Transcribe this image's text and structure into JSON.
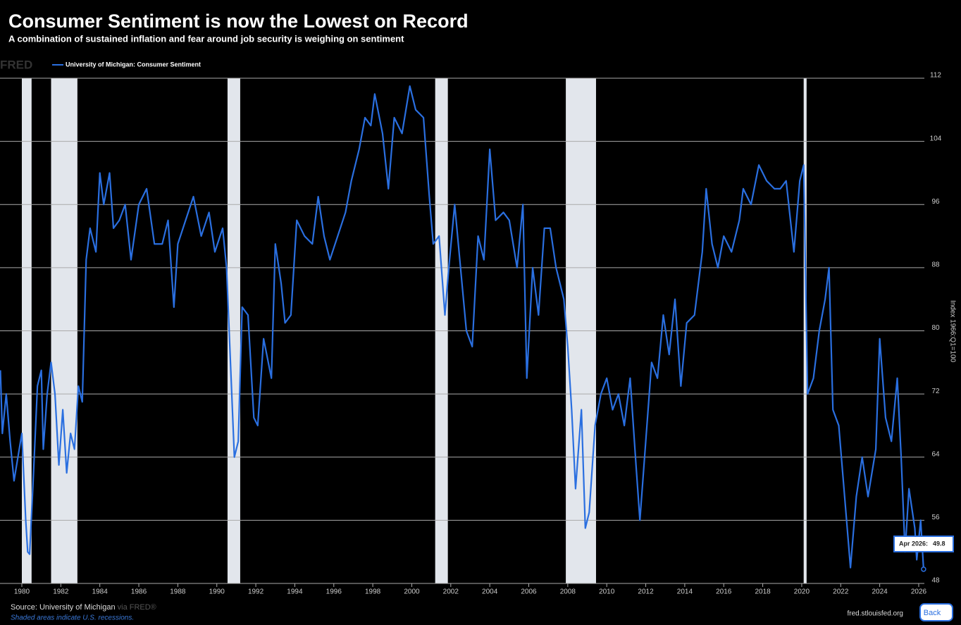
{
  "chart_data": {
    "type": "line",
    "title": "Consumer Sentiment is now the Lowest on Record",
    "subtitle": "A combination of sustained inflation and fear around job security is weighing on sentiment",
    "logo": "FRED",
    "y_label": "Index 1966:Q1=100",
    "source": "Source: University of Michigan",
    "via": "via FRED®",
    "recession_note": "Shaded areas indicate U.S. recessions.",
    "site": "fred.stlouisfed.org",
    "button": "Back",
    "tooltip_date": "Apr 2026:",
    "grid": true,
    "xlim": [
      1978.88,
      2026.29
    ],
    "ylim": [
      48,
      112
    ],
    "xticks": [
      1980,
      1982,
      1984,
      1986,
      1988,
      1990,
      1992,
      1994,
      1996,
      1998,
      2000,
      2002,
      2004,
      2006,
      2008,
      2010,
      2012,
      2014,
      2016,
      2018,
      2020,
      2022,
      2024,
      2026
    ],
    "yticks": [
      48,
      56,
      64,
      72,
      80,
      88,
      96,
      104,
      112
    ],
    "recessions": [
      [
        1980.0,
        1980.5
      ],
      [
        1981.5,
        1982.85
      ],
      [
        1990.55,
        1991.2
      ],
      [
        2001.2,
        2001.85
      ],
      [
        2007.9,
        2009.45
      ],
      [
        2020.1,
        2020.25
      ]
    ],
    "x": [
      1978.9,
      1979.0,
      1979.2,
      1979.4,
      1979.6,
      1979.8,
      1980.0,
      1980.2,
      1980.3,
      1980.4,
      1980.6,
      1980.8,
      1981.0,
      1981.1,
      1981.3,
      1981.5,
      1981.7,
      1981.9,
      1982.1,
      1982.3,
      1982.5,
      1982.7,
      1982.9,
      1983.1,
      1983.3,
      1983.5,
      1983.8,
      1984.0,
      1984.2,
      1984.5,
      1984.7,
      1985.0,
      1985.3,
      1985.6,
      1986.0,
      1986.4,
      1986.8,
      1987.2,
      1987.5,
      1987.8,
      1988.0,
      1988.4,
      1988.8,
      1989.2,
      1989.6,
      1989.9,
      1990.3,
      1990.5,
      1990.7,
      1990.9,
      1991.1,
      1991.3,
      1991.6,
      1991.9,
      1992.1,
      1992.4,
      1992.8,
      1993.0,
      1993.3,
      1993.5,
      1993.8,
      1994.1,
      1994.5,
      1994.9,
      1995.2,
      1995.5,
      1995.8,
      1996.2,
      1996.6,
      1996.9,
      1997.3,
      1997.6,
      1997.9,
      1998.1,
      1998.5,
      1998.8,
      1999.1,
      1999.5,
      1999.9,
      2000.2,
      2000.6,
      2000.9,
      2001.1,
      2001.4,
      2001.7,
      2001.9,
      2002.2,
      2002.5,
      2002.8,
      2003.1,
      2003.4,
      2003.7,
      2004.0,
      2004.3,
      2004.7,
      2005.0,
      2005.4,
      2005.7,
      2005.9,
      2006.2,
      2006.5,
      2006.8,
      2007.1,
      2007.4,
      2007.8,
      2008.0,
      2008.2,
      2008.4,
      2008.7,
      2008.9,
      2009.1,
      2009.4,
      2009.7,
      2010.0,
      2010.3,
      2010.6,
      2010.9,
      2011.2,
      2011.5,
      2011.7,
      2012.0,
      2012.3,
      2012.6,
      2012.9,
      2013.2,
      2013.5,
      2013.8,
      2014.1,
      2014.5,
      2014.9,
      2015.1,
      2015.4,
      2015.7,
      2016.0,
      2016.4,
      2016.8,
      2017.0,
      2017.4,
      2017.8,
      2018.2,
      2018.6,
      2018.9,
      2019.2,
      2019.6,
      2019.9,
      2020.1,
      2020.3,
      2020.6,
      2020.9,
      2021.2,
      2021.4,
      2021.6,
      2021.9,
      2022.2,
      2022.5,
      2022.8,
      2023.1,
      2023.4,
      2023.8,
      2024.0,
      2024.3,
      2024.6,
      2024.9,
      2025.1,
      2025.3,
      2025.5,
      2025.8,
      2025.9,
      2026.1,
      2026.25
    ],
    "series": [
      {
        "name": "University of Michigan: Consumer Sentiment",
        "color": "#2a6fe0",
        "values": [
          75,
          67,
          72,
          66,
          61,
          64,
          67,
          56,
          52,
          51.7,
          62,
          73,
          75,
          65,
          72,
          76,
          72,
          63,
          70,
          62,
          67,
          65,
          73,
          71,
          89,
          93,
          90,
          100,
          96,
          100,
          93,
          94,
          96,
          89,
          96,
          98,
          91,
          91,
          94,
          83,
          91,
          94,
          97,
          92,
          95,
          90,
          93,
          88,
          76,
          64,
          66,
          83,
          82,
          69,
          68,
          79,
          74,
          91,
          86,
          81,
          82,
          94,
          92,
          91,
          97,
          92,
          89,
          92,
          95,
          99,
          103,
          107,
          106,
          110,
          105,
          98,
          107,
          105,
          111,
          108,
          107,
          97,
          91,
          92,
          82,
          88,
          96,
          88,
          80,
          78,
          92,
          89,
          103,
          94,
          95,
          94,
          88,
          96,
          74,
          88,
          82,
          93,
          93,
          88,
          84,
          78,
          70,
          60,
          70,
          55,
          57,
          68,
          72,
          74,
          70,
          72,
          68,
          74,
          63,
          56,
          66,
          76,
          74,
          82,
          77,
          84,
          73,
          81,
          82,
          90,
          98,
          91,
          88,
          92,
          90,
          94,
          98,
          96,
          101,
          99,
          98,
          98,
          99,
          90,
          99,
          101,
          72,
          74,
          80,
          84,
          88,
          70,
          68,
          59,
          50,
          59,
          64,
          59,
          65,
          79,
          69,
          66,
          74,
          64,
          52,
          60,
          55,
          51,
          56,
          49.8
        ]
      }
    ]
  }
}
